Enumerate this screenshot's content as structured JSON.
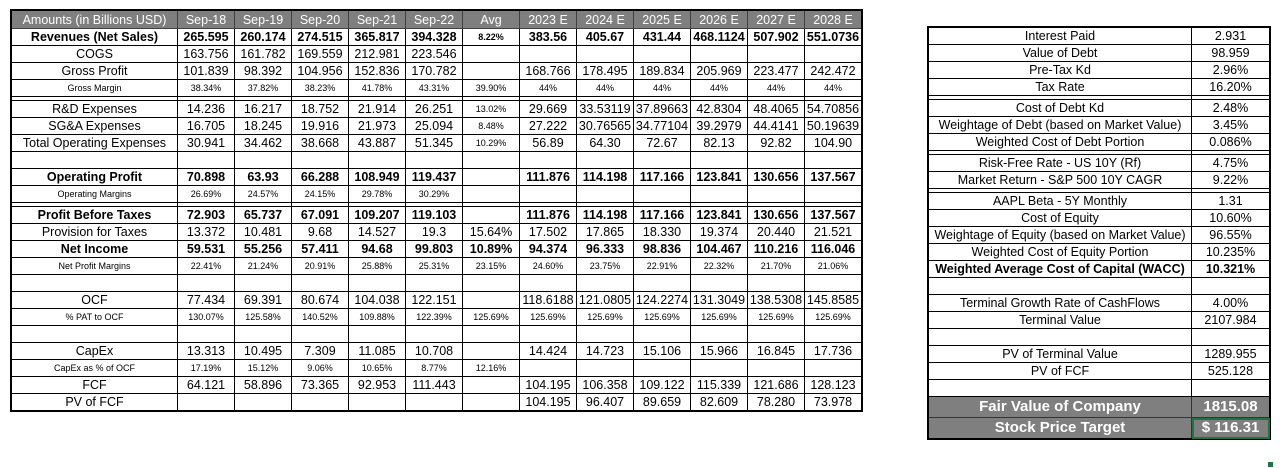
{
  "dcf_table": {
    "header": {
      "label": "Amounts (in Billions USD)",
      "historical": [
        "Sep-18",
        "Sep-19",
        "Sep-20",
        "Sep-21",
        "Sep-22"
      ],
      "avg": "Avg",
      "estimates": [
        "2023 E",
        "2024 E",
        "2025 E",
        "2026 E",
        "2027 E",
        "2028 E"
      ]
    },
    "rows": {
      "revenues": {
        "label": "Revenues (Net Sales)",
        "hist": [
          "265.595",
          "260.174",
          "274.515",
          "365.817",
          "394.328"
        ],
        "avg": "8.22%",
        "est": [
          "383.56",
          "405.67",
          "431.44",
          "468.1124",
          "507.902",
          "551.0736"
        ]
      },
      "cogs": {
        "label": "COGS",
        "hist": [
          "163.756",
          "161.782",
          "169.559",
          "212.981",
          "223.546"
        ],
        "avg": "",
        "est": [
          "",
          "",
          "",
          "",
          "",
          ""
        ]
      },
      "gross_profit": {
        "label": "Gross Profit",
        "hist": [
          "101.839",
          "98.392",
          "104.956",
          "152.836",
          "170.782"
        ],
        "avg": "",
        "est": [
          "168.766",
          "178.495",
          "189.834",
          "205.969",
          "223.477",
          "242.472"
        ]
      },
      "gross_margin": {
        "label": "Gross Margin",
        "hist": [
          "38.34%",
          "37.82%",
          "38.23%",
          "41.78%",
          "43.31%"
        ],
        "avg": "39.90%",
        "est": [
          "44%",
          "44%",
          "44%",
          "44%",
          "44%",
          "44%"
        ]
      },
      "rd": {
        "label": "R&D Expenses",
        "hist": [
          "14.236",
          "16.217",
          "18.752",
          "21.914",
          "26.251"
        ],
        "avg": "13.02%",
        "est": [
          "29.669",
          "33.53119",
          "37.89663",
          "42.8304",
          "48.4065",
          "54.70856"
        ]
      },
      "sga": {
        "label": "SG&A Expenses",
        "hist": [
          "16.705",
          "18.245",
          "19.916",
          "21.973",
          "25.094"
        ],
        "avg": "8.48%",
        "est": [
          "27.222",
          "30.76565",
          "34.77104",
          "39.2979",
          "44.4141",
          "50.19639"
        ]
      },
      "total_opex": {
        "label": "Total Operating Expenses",
        "hist": [
          "30.941",
          "34.462",
          "38.668",
          "43.887",
          "51.345"
        ],
        "avg": "10.29%",
        "est": [
          "56.89",
          "64.30",
          "72.67",
          "82.13",
          "92.82",
          "104.90"
        ]
      },
      "operating_profit": {
        "label": "Operating Profit",
        "hist": [
          "70.898",
          "63.93",
          "66.288",
          "108.949",
          "119.437"
        ],
        "avg": "",
        "est": [
          "111.876",
          "114.198",
          "117.166",
          "123.841",
          "130.656",
          "137.567"
        ]
      },
      "operating_margins": {
        "label": "Operating Margins",
        "hist": [
          "26.69%",
          "24.57%",
          "24.15%",
          "29.78%",
          "30.29%"
        ],
        "avg": "",
        "est": [
          "",
          "",
          "",
          "",
          "",
          ""
        ]
      },
      "pbt": {
        "label": "Profit Before Taxes",
        "hist": [
          "72.903",
          "65.737",
          "67.091",
          "109.207",
          "119.103"
        ],
        "avg": "",
        "est": [
          "111.876",
          "114.198",
          "117.166",
          "123.841",
          "130.656",
          "137.567"
        ]
      },
      "taxes": {
        "label": "Provision for Taxes",
        "hist": [
          "13.372",
          "10.481",
          "9.68",
          "14.527",
          "19.3"
        ],
        "avg": "15.64%",
        "est": [
          "17.502",
          "17.865",
          "18.330",
          "19.374",
          "20.440",
          "21.521"
        ]
      },
      "net_income": {
        "label": "Net Income",
        "hist": [
          "59.531",
          "55.256",
          "57.411",
          "94.68",
          "99.803"
        ],
        "avg": "10.89%",
        "est": [
          "94.374",
          "96.333",
          "98.836",
          "104.467",
          "110.216",
          "116.046"
        ]
      },
      "net_margins": {
        "label": "Net Profit Margins",
        "hist": [
          "22.41%",
          "21.24%",
          "20.91%",
          "25.88%",
          "25.31%"
        ],
        "avg": "23.15%",
        "est": [
          "24.60%",
          "23.75%",
          "22.91%",
          "22.32%",
          "21.70%",
          "21.06%"
        ]
      },
      "ocf": {
        "label": "OCF",
        "hist": [
          "77.434",
          "69.391",
          "80.674",
          "104.038",
          "122.151"
        ],
        "avg": "",
        "est": [
          "118.6188",
          "121.0805",
          "124.2274",
          "131.3049",
          "138.5308",
          "145.8585"
        ]
      },
      "pat_to_ocf": {
        "label": "% PAT to OCF",
        "hist": [
          "130.07%",
          "125.58%",
          "140.52%",
          "109.88%",
          "122.39%"
        ],
        "avg": "125.69%",
        "est": [
          "125.69%",
          "125.69%",
          "125.69%",
          "125.69%",
          "125.69%",
          "125.69%"
        ]
      },
      "capex": {
        "label": "CapEx",
        "hist": [
          "13.313",
          "10.495",
          "7.309",
          "11.085",
          "10.708"
        ],
        "avg": "",
        "est": [
          "14.424",
          "14.723",
          "15.106",
          "15.966",
          "16.845",
          "17.736"
        ]
      },
      "capex_pct": {
        "label": "CapEx as % of OCF",
        "hist": [
          "17.19%",
          "15.12%",
          "9.06%",
          "10.65%",
          "8.77%"
        ],
        "avg": "12.16%",
        "est": [
          "",
          "",
          "",
          "",
          "",
          ""
        ]
      },
      "fcf": {
        "label": "FCF",
        "hist": [
          "64.121",
          "58.896",
          "73.365",
          "92.953",
          "111.443"
        ],
        "avg": "",
        "est": [
          "104.195",
          "106.358",
          "109.122",
          "115.339",
          "121.686",
          "128.123"
        ]
      },
      "pv_fcf": {
        "label": "PV of FCF",
        "hist": [
          "",
          "",
          "",
          "",
          ""
        ],
        "avg": "",
        "est": [
          "104.195",
          "96.407",
          "89.659",
          "82.609",
          "78.280",
          "73.978"
        ]
      }
    }
  },
  "wacc_table": {
    "interest_paid": {
      "label": "Interest Paid",
      "value": "2.931"
    },
    "value_of_debt": {
      "label": "Value of Debt",
      "value": "98.959"
    },
    "pretax_kd": {
      "label": "Pre-Tax Kd",
      "value": "2.96%"
    },
    "tax_rate": {
      "label": "Tax Rate",
      "value": "16.20%"
    },
    "cost_of_debt": {
      "label": "Cost of Debt Kd",
      "value": "2.48%"
    },
    "weight_debt": {
      "label": "Weightage of Debt (based on Market Value)",
      "value": "3.45%"
    },
    "wcost_debt": {
      "label": "Weighted Cost of Debt Portion",
      "value": "0.086%"
    },
    "rf": {
      "label": "Risk-Free Rate - US 10Y (Rf)",
      "value": "4.75%"
    },
    "market_return": {
      "label": "Market Return - S&P 500 10Y CAGR",
      "value": "9.22%"
    },
    "beta": {
      "label": "AAPL Beta - 5Y Monthly",
      "value": "1.31"
    },
    "cost_equity": {
      "label": "Cost of Equity",
      "value": "10.60%"
    },
    "weight_equity": {
      "label": "Weightage of Equity (based on Market Value)",
      "value": "96.55%"
    },
    "wcost_equity": {
      "label": "Weighted Cost of Equity Portion",
      "value": "10.235%"
    },
    "wacc": {
      "label": "Weighted Average Cost of Capital (WACC)",
      "value": "10.321%"
    },
    "terminal_growth": {
      "label": "Terminal Growth Rate of CashFlows",
      "value": "4.00%"
    },
    "terminal_value": {
      "label": "Terminal Value",
      "value": "2107.984"
    },
    "pv_terminal": {
      "label": "PV of Terminal Value",
      "value": "1289.955"
    },
    "pv_fcf": {
      "label": "PV of FCF",
      "value": "525.128"
    },
    "fair_value": {
      "label": "Fair Value of Company",
      "value": "1815.08"
    },
    "price_target": {
      "label": "Stock Price Target",
      "value": "$  116.31"
    }
  },
  "colors": {
    "header_bg": "#7f7f7f",
    "header_text": "#ffffff",
    "selection": "#217346"
  }
}
